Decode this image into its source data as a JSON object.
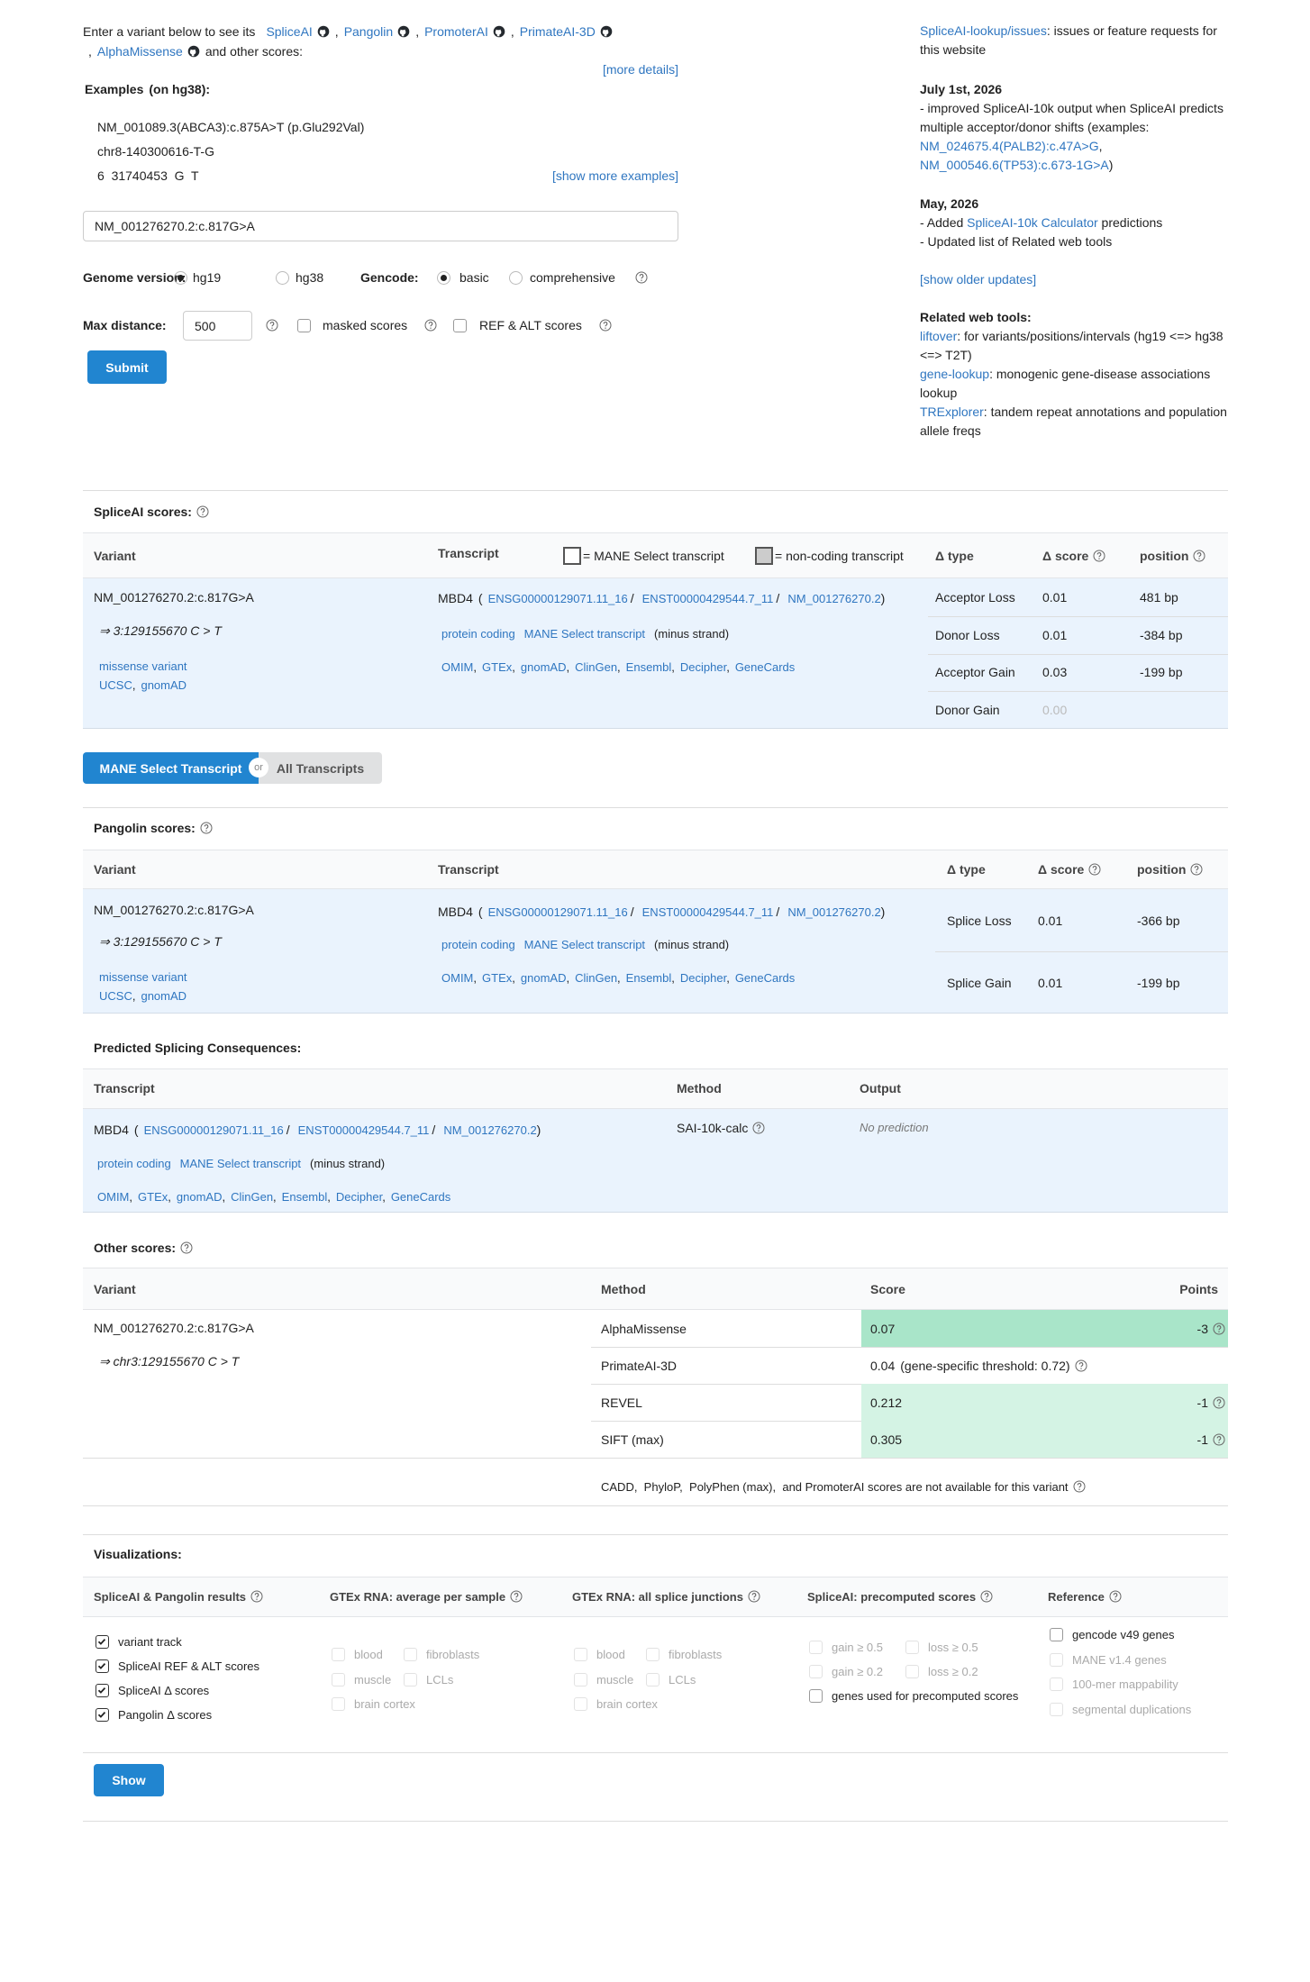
{
  "intro": {
    "lead": "Enter a variant below to see its",
    "tools": [
      "SpliceAI",
      "Pangolin",
      "PromoterAI",
      "PrimateAI-3D",
      "AlphaMissense"
    ],
    "sep": ",",
    "tail": "and other scores:",
    "more": "[more details]"
  },
  "examples": {
    "title": "Examples",
    "build": "(on hg38):",
    "items": [
      "NM_001089.3(ABCA3):c.875A>T (p.Glu292Val)",
      "chr8-140300616-T-G",
      "6  31740453  G  T"
    ],
    "more": "[show more examples]"
  },
  "form": {
    "variant": "NM_001276270.2:c.817G>A",
    "genome_label": "Genome version:",
    "genome_options": [
      "hg19",
      "hg38"
    ],
    "gencode_label": "Gencode:",
    "gencode_options": [
      "basic",
      "comprehensive"
    ],
    "distance_label": "Max distance:",
    "distance": 500,
    "masked": "masked scores",
    "ref_alt": "REF & ALT scores",
    "submit": "Submit"
  },
  "sidebar": {
    "issues": [
      {
        "link": "SpliceAI-lookup/issues"
      },
      {
        "text": ": issues or feature requests for this website"
      }
    ],
    "updates": [
      {
        "date": "July 1st, 2026",
        "lines": [
          [
            {
              "text": "- improved SpliceAI-10k output when SpliceAI predicts multiple acceptor/donor shifts (examples: "
            },
            {
              "link": "NM_024675.4(PALB2):c.47A>G"
            },
            {
              "text": ", "
            },
            {
              "link": "NM_000546.6(TP53):c.673-1G>A"
            },
            {
              "text": ")"
            }
          ]
        ]
      },
      {
        "date": "May, 2026",
        "lines": [
          [
            {
              "text": "- Added "
            },
            {
              "link": "SpliceAI-10k Calculator"
            },
            {
              "text": " predictions"
            }
          ],
          [
            {
              "text": "- Updated list of Related web tools"
            }
          ]
        ]
      }
    ],
    "older": "[show older updates]",
    "related_title": "Related web tools:",
    "related": [
      [
        {
          "link": "liftover"
        },
        {
          "text": ": for variants/positions/intervals (hg19 <=> hg38 <=> T2T)"
        }
      ],
      [
        {
          "link": "gene-lookup"
        },
        {
          "text": ": monogenic gene-disease associations lookup"
        }
      ],
      [
        {
          "link": "TRExplorer"
        },
        {
          "text": ": tandem repeat annotations and population allele freqs"
        }
      ]
    ]
  },
  "spliceai": {
    "title": "SpliceAI scores:",
    "headers": {
      "variant": "Variant",
      "transcript": "Transcript",
      "mane_legend": "= MANE Select transcript",
      "noncoding_legend": "= non-coding transcript",
      "type": "Δ type",
      "score": "Δ score",
      "position": "position"
    },
    "variant": {
      "name": "NM_001276270.2:c.817G>A",
      "coords": "⇒ 3:129155670 C > T",
      "consequence": "missense variant",
      "links": [
        "UCSC",
        "gnomAD"
      ],
      "link_sep": ","
    },
    "transcript": {
      "gene": "MBD4",
      "open": "(",
      "ids": [
        "ENSG00000129071.11_16",
        "ENST00000429544.7_11",
        "NM_001276270.2"
      ],
      "id_sep": "/",
      "close": ")",
      "tags": [
        "protein coding",
        "MANE Select transcript"
      ],
      "strand": "(minus strand)",
      "links": [
        "OMIM",
        "GTEx",
        "gnomAD",
        "ClinGen",
        "Ensembl",
        "Decipher",
        "GeneCards"
      ],
      "link_sep": ","
    },
    "rows": [
      {
        "type": "Acceptor Loss",
        "score": "0.01",
        "position": "481 bp"
      },
      {
        "type": "Donor Loss",
        "score": "0.01",
        "position": "-384 bp"
      },
      {
        "type": "Acceptor Gain",
        "score": "0.03",
        "position": "-199 bp"
      },
      {
        "type": "Donor Gain",
        "score": "0.00",
        "color": "#bbbbbb"
      }
    ]
  },
  "toggle": {
    "active": "MANE Select Transcript",
    "or": "or",
    "other": "All Transcripts"
  },
  "pangolin": {
    "title": "Pangolin scores:",
    "headers": {
      "variant": "Variant",
      "transcript": "Transcript",
      "type": "Δ type",
      "score": "Δ score",
      "position": "position"
    },
    "variant": {
      "name": "NM_001276270.2:c.817G>A",
      "coords": "⇒ 3:129155670 C > T",
      "consequence": "missense variant",
      "links": [
        "UCSC",
        "gnomAD"
      ],
      "link_sep": ","
    },
    "transcript": {
      "gene": "MBD4",
      "open": "(",
      "ids": [
        "ENSG00000129071.11_16",
        "ENST00000429544.7_11",
        "NM_001276270.2"
      ],
      "id_sep": "/",
      "close": ")",
      "tags": [
        "protein coding",
        "MANE Select transcript"
      ],
      "strand": "(minus strand)",
      "links": [
        "OMIM",
        "GTEx",
        "gnomAD",
        "ClinGen",
        "Ensembl",
        "Decipher",
        "GeneCards"
      ],
      "link_sep": ","
    },
    "rows": [
      {
        "type": "Splice Loss",
        "score": "0.01",
        "position": "-366 bp"
      },
      {
        "type": "Splice Gain",
        "score": "0.01",
        "position": "-199 bp"
      }
    ]
  },
  "predicted": {
    "title": "Predicted Splicing Consequences:",
    "headers": {
      "transcript": "Transcript",
      "method": "Method",
      "output": "Output"
    },
    "transcript": {
      "gene": "MBD4",
      "open": "(",
      "ids": [
        "ENSG00000129071.11_16",
        "ENST00000429544.7_11",
        "NM_001276270.2"
      ],
      "id_sep": "/",
      "close": ")",
      "tags": [
        "protein coding",
        "MANE Select transcript"
      ],
      "strand": "(minus strand)",
      "links": [
        "OMIM",
        "GTEx",
        "gnomAD",
        "ClinGen",
        "Ensembl",
        "Decipher",
        "GeneCards"
      ],
      "link_sep": ","
    },
    "method": "SAI-10k-calc",
    "output": "No prediction"
  },
  "other": {
    "title": "Other scores:",
    "headers": {
      "variant": "Variant",
      "method": "Method",
      "score": "Score",
      "points": "Points"
    },
    "variant": {
      "name": "NM_001276270.2:c.817G>A",
      "coords": "⇒ chr3:129155670 C > T"
    },
    "rows": [
      {
        "method": "AlphaMissense",
        "score": "0.07",
        "points": "-3",
        "color": "#a9e5c9"
      },
      {
        "method": "PrimateAI-3D",
        "score": "0.04",
        "threshold_note": "(gene-specific threshold: 0.72)"
      },
      {
        "method": "REVEL",
        "score": "0.212",
        "points": "-1",
        "color": "#d4f3e4"
      },
      {
        "method": "SIFT (max)",
        "score": "0.305",
        "points": "-1",
        "color": "#d4f3e4"
      }
    ],
    "note": "CADD,  PhyloP,  PolyPhen (max),  and PromoterAI scores are not available for this variant"
  },
  "visualizations": {
    "title": "Visualizations:",
    "columns": [
      {
        "title": "SpliceAI & Pangolin results",
        "items": [
          {
            "label": "variant track",
            "checked": true
          },
          {
            "label": "SpliceAI REF & ALT scores",
            "checked": true
          },
          {
            "label": "SpliceAI Δ  scores",
            "checked": true
          },
          {
            "label": "Pangolin Δ  scores",
            "checked": true
          }
        ]
      },
      {
        "title": "GTEx RNA: average per sample",
        "items": [
          {
            "label": "blood",
            "disabled": true
          },
          {
            "label": "fibroblasts",
            "disabled": true
          },
          {
            "label": "muscle",
            "disabled": true
          },
          {
            "label": "LCLs",
            "disabled": true
          },
          {
            "label": "brain cortex",
            "disabled": true
          }
        ]
      },
      {
        "title": "GTEx RNA: all splice junctions",
        "items": [
          {
            "label": "blood",
            "disabled": true
          },
          {
            "label": "fibroblasts",
            "disabled": true
          },
          {
            "label": "muscle",
            "disabled": true
          },
          {
            "label": "LCLs",
            "disabled": true
          },
          {
            "label": "brain cortex",
            "disabled": true
          }
        ]
      },
      {
        "title": "SpliceAI: precomputed scores",
        "items": [
          {
            "label": "gain ≥ 0.5",
            "disabled": true
          },
          {
            "label": "loss ≥ 0.5",
            "disabled": true
          },
          {
            "label": "gain ≥ 0.2",
            "disabled": true
          },
          {
            "label": "loss ≥ 0.2",
            "disabled": true
          },
          {
            "label": "genes used for precomputed scores"
          }
        ]
      },
      {
        "title": "Reference",
        "items": [
          {
            "label": "gencode v49 genes"
          },
          {
            "label": "MANE v1.4 genes",
            "disabled": true
          },
          {
            "label": "100-mer mappability",
            "disabled": true
          },
          {
            "label": "segmental duplications",
            "disabled": true
          }
        ]
      }
    ],
    "show": "Show"
  }
}
